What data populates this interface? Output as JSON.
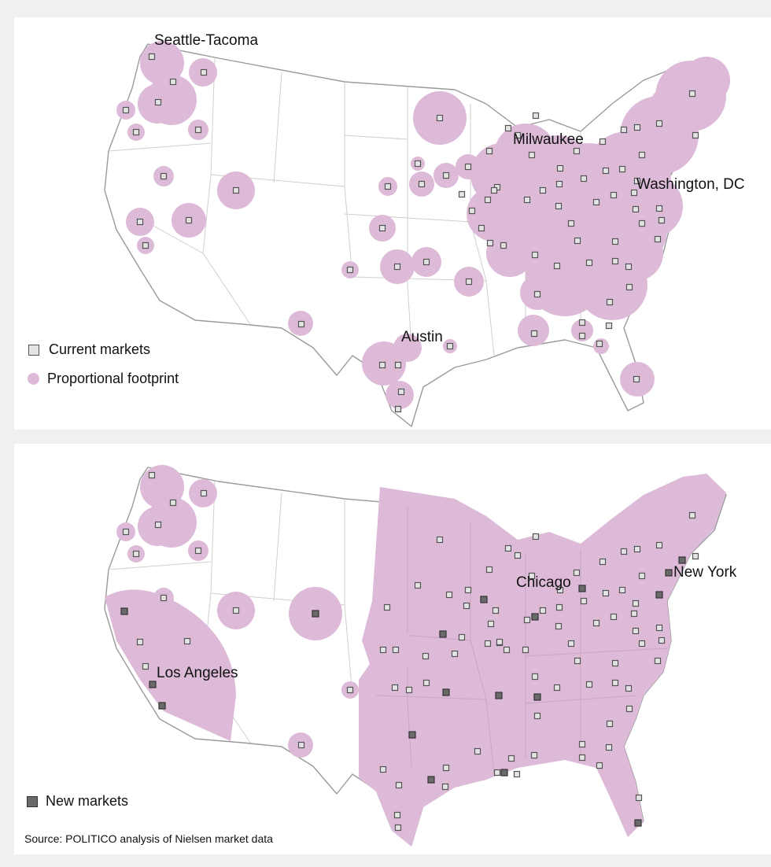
{
  "maps": [
    {
      "id": "current",
      "city_labels": [
        "Seattle-Tacoma",
        "Milwaukee",
        "Washington, DC",
        "Austin"
      ],
      "legend": [
        "Current markets",
        "Proportional footprint"
      ]
    },
    {
      "id": "expanded",
      "city_labels": [
        "Chicago",
        "New York",
        "Los Angeles"
      ],
      "legend": [
        "New markets"
      ]
    }
  ],
  "source": "Source: POLITICO analysis of Nielsen market data",
  "colors": {
    "footprint": "#dcbad8",
    "current_marker_fill": "#e4e4e4",
    "current_marker_stroke": "#555555",
    "new_marker_fill": "#6a6a6a",
    "land": "#ffffff",
    "state_borders": "#cfcfcf",
    "background": "#f1eff2"
  }
}
